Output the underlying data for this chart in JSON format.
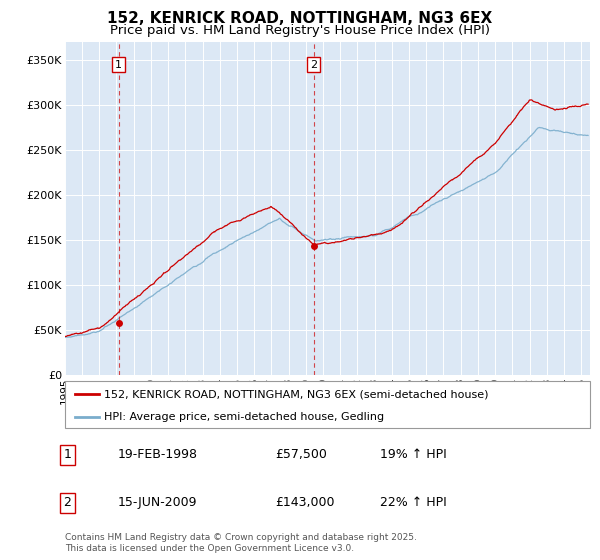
{
  "title": "152, KENRICK ROAD, NOTTINGHAM, NG3 6EX",
  "subtitle": "Price paid vs. HM Land Registry's House Price Index (HPI)",
  "ylim": [
    0,
    370000
  ],
  "yticks": [
    0,
    50000,
    100000,
    150000,
    200000,
    250000,
    300000,
    350000
  ],
  "ytick_labels": [
    "£0",
    "£50K",
    "£100K",
    "£150K",
    "£200K",
    "£250K",
    "£300K",
    "£350K"
  ],
  "xlim_start": 1995.0,
  "xlim_end": 2025.5,
  "plot_bg_color": "#dce8f5",
  "line_color_red": "#cc0000",
  "line_color_blue": "#7aadcc",
  "purchase1_date": 1998.13,
  "purchase1_price": 57500,
  "purchase2_date": 2009.46,
  "purchase2_price": 143000,
  "legend_red": "152, KENRICK ROAD, NOTTINGHAM, NG3 6EX (semi-detached house)",
  "legend_blue": "HPI: Average price, semi-detached house, Gedling",
  "annotation1_date": "19-FEB-1998",
  "annotation1_price": "£57,500",
  "annotation1_hpi": "19% ↑ HPI",
  "annotation2_date": "15-JUN-2009",
  "annotation2_price": "£143,000",
  "annotation2_hpi": "22% ↑ HPI",
  "footnote": "Contains HM Land Registry data © Crown copyright and database right 2025.\nThis data is licensed under the Open Government Licence v3.0.",
  "title_fontsize": 11,
  "subtitle_fontsize": 9.5,
  "tick_fontsize": 8,
  "legend_fontsize": 8,
  "annot_fontsize": 9,
  "footnote_fontsize": 6.5
}
